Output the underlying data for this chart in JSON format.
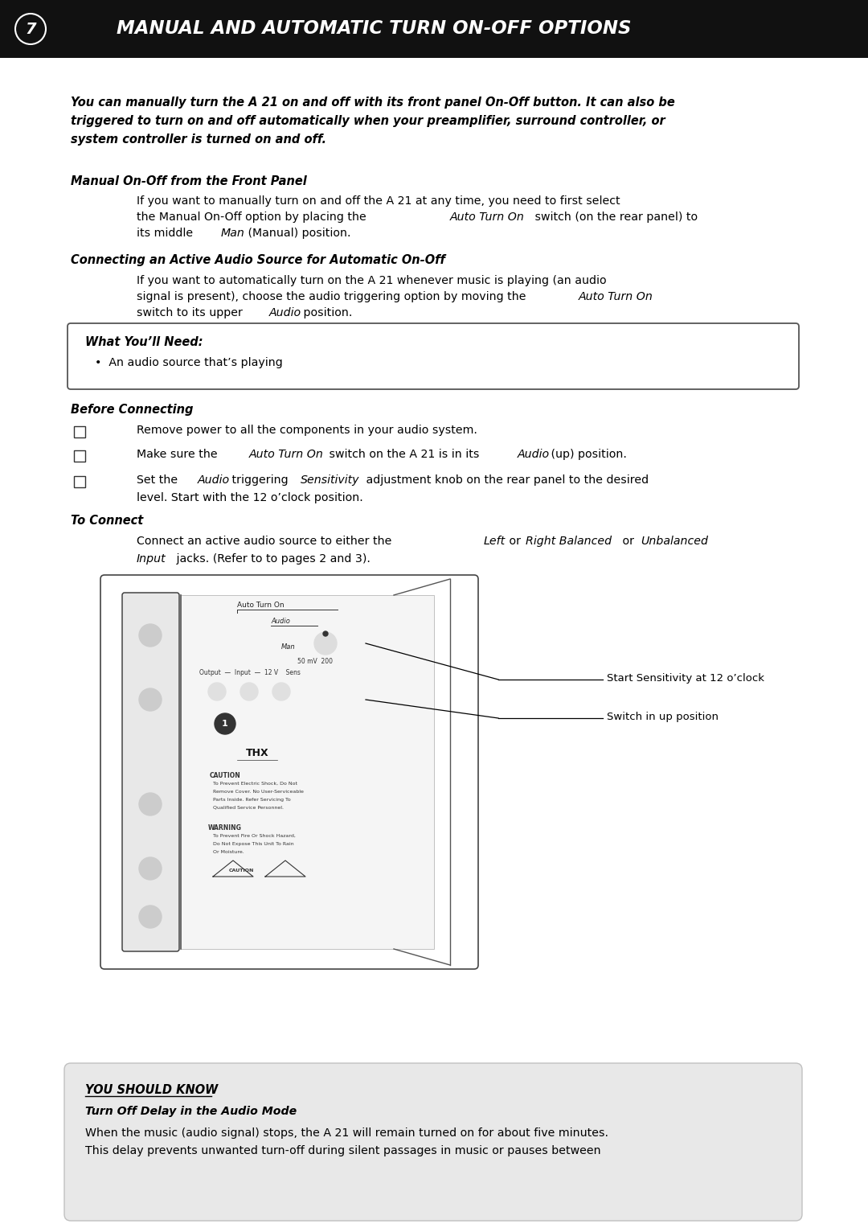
{
  "page_width": 10.8,
  "page_height": 15.27,
  "bg_color": "#ffffff",
  "header_bg": "#111111",
  "header_number": "7",
  "header_title": "MANUAL AND AUTOMATIC TURN ON-OFF OPTIONS",
  "intro_bold_italic": "You can manually turn the A 21 on and off with its front panel On-Off button. It can also be\ntriggered to turn on and off automatically when your preamplifier, surround controller, or\nsystem controller is turned on and off.",
  "s1_title": "Manual On-Off from the Front Panel",
  "s2_title": "Connecting an Active Audio Source for Automatic On-Off",
  "box_title": "What You’ll Need:",
  "box_item": "•  An audio source that’s playing",
  "bc_title": "Before Connecting",
  "tc_title": "To Connect",
  "callout1": "Start Sensitivity at 12 o’clock",
  "callout2": "Switch in up position",
  "ysk_title": "YOU SHOULD KNOW",
  "ysk_subtitle": "Turn Off Delay in the Audio Mode",
  "ysk_body1": "When the music (audio signal) stops, the A 21 will remain turned on for about five minutes.",
  "ysk_body2": "This delay prevents unwanted turn-off during silent passages in music or pauses between"
}
